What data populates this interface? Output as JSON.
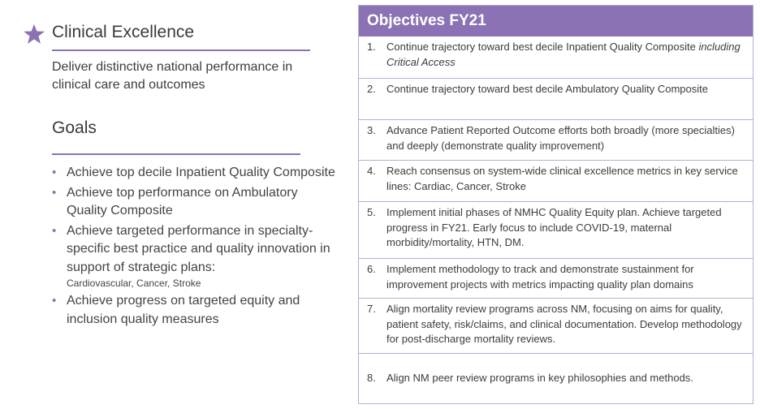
{
  "left": {
    "section_title": "Clinical Excellence",
    "description": "Deliver distinctive national performance in clinical care and outcomes",
    "goals_title": "Goals",
    "goals": [
      {
        "text": "Achieve top decile Inpatient Quality Composite",
        "sub": ""
      },
      {
        "text": "Achieve top performance on Ambulatory Quality Composite",
        "sub": ""
      },
      {
        "text": "Achieve targeted performance in specialty-specific best practice and quality innovation in support of strategic plans:",
        "sub": "Cardiovascular, Cancer, Stroke"
      },
      {
        "text": "Achieve progress on targeted equity and inclusion quality measures",
        "sub": ""
      }
    ],
    "star_color": "#8a72b4"
  },
  "objectives": {
    "title": "Objectives FY21",
    "header_color": "#8a72b4",
    "items": [
      {
        "num": "1.",
        "text": "Continue trajectory toward best decile Inpatient Quality Composite",
        "italic": "including Critical Access"
      },
      {
        "num": "2.",
        "text": "Continue trajectory toward best decile Ambulatory Quality Composite",
        "italic": ""
      },
      {
        "num": "3.",
        "text": "Advance Patient Reported Outcome efforts both broadly (more specialties) and deeply (demonstrate quality improvement)",
        "italic": ""
      },
      {
        "num": "4.",
        "text": "Reach consensus on system-wide clinical excellence metrics in key service lines:  Cardiac, Cancer, Stroke",
        "italic": ""
      },
      {
        "num": "5.",
        "text": "Implement initial phases of NMHC Quality Equity plan. Achieve targeted progress in FY21. Early focus to include COVID-19, maternal morbidity/mortality, HTN, DM.",
        "italic": ""
      },
      {
        "num": "6.",
        "text": "Implement methodology to track and demonstrate sustainment for improvement projects with metrics impacting quality plan domains",
        "italic": ""
      },
      {
        "num": "7.",
        "text": "Align mortality review programs across NM, focusing on aims for quality, patient safety, risk/claims, and clinical documentation. Develop methodology for post-discharge mortality reviews.",
        "italic": ""
      },
      {
        "num": "8.",
        "text": "Align NM peer review programs in key philosophies and methods.",
        "italic": ""
      }
    ]
  }
}
